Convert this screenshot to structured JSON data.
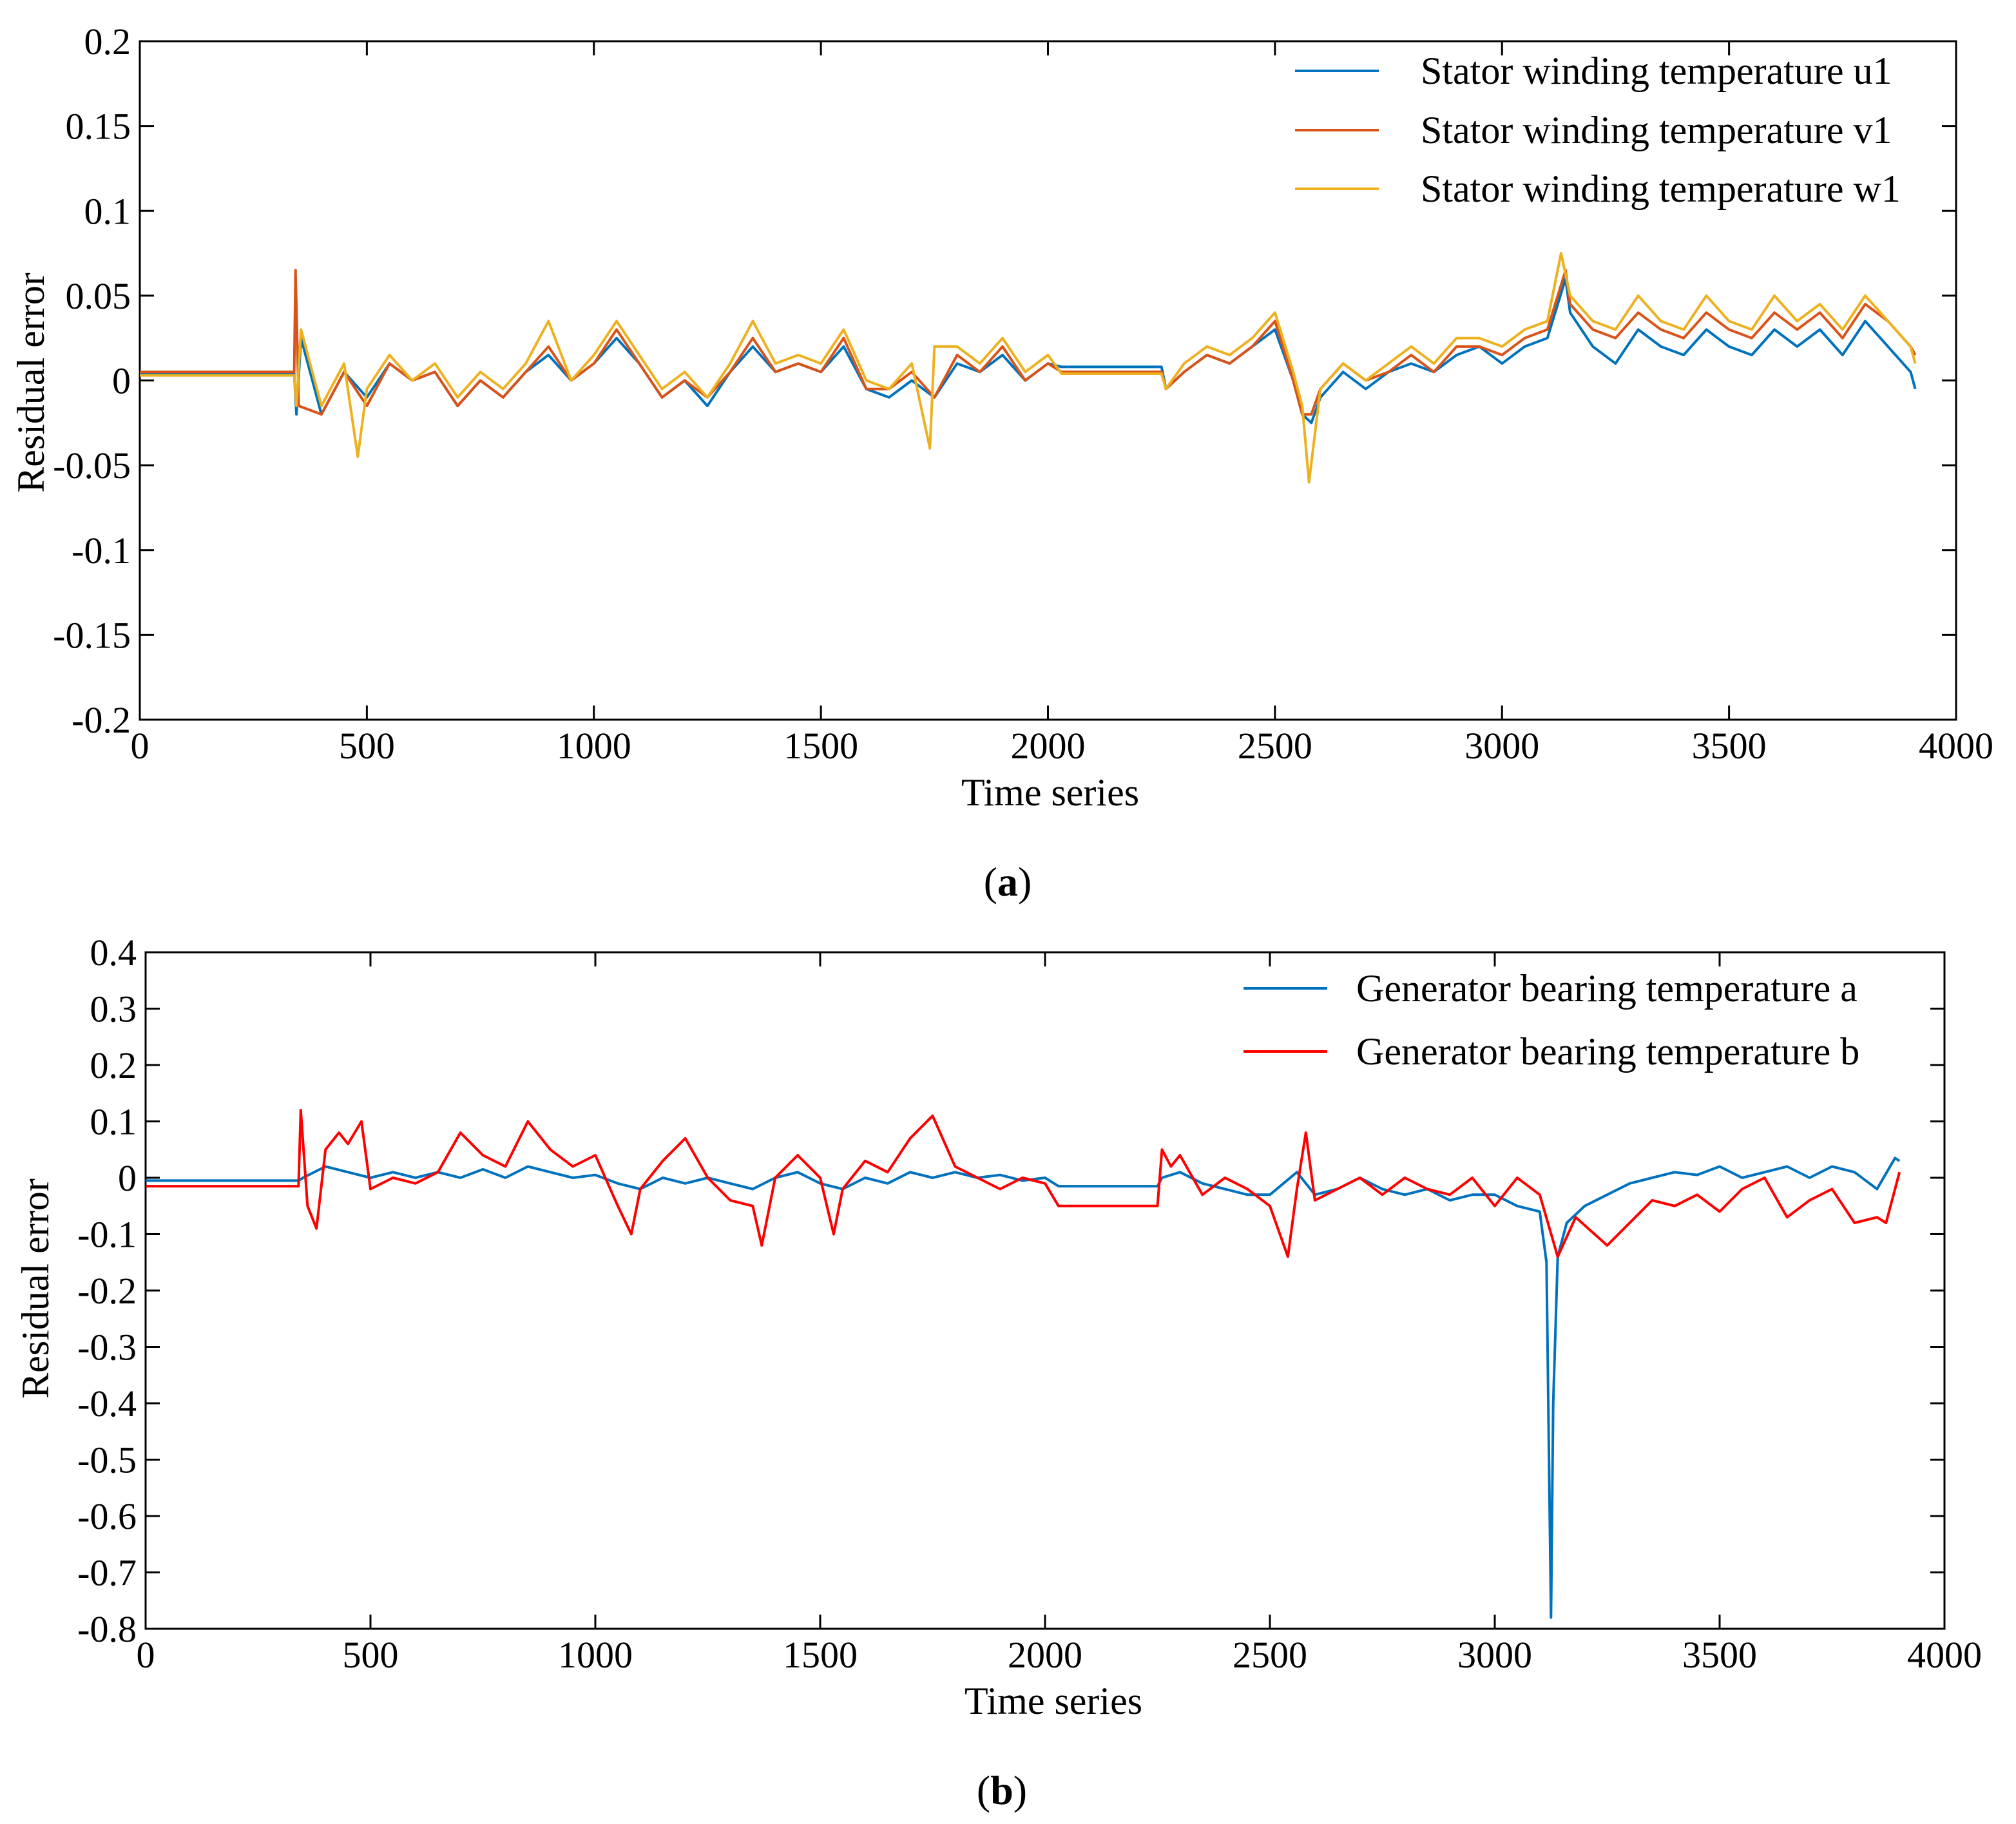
{
  "chart_data": [
    {
      "id": "a",
      "type": "line",
      "caption": "a",
      "xlabel": "Time series",
      "ylabel": "Residual error",
      "xlim": [
        0,
        4000
      ],
      "ylim": [
        -0.2,
        0.2
      ],
      "xticks": [
        0,
        500,
        1000,
        1500,
        2000,
        2500,
        3000,
        3500,
        4000
      ],
      "xtick_labels": [
        "0",
        "500",
        "1000",
        "1500",
        "2000",
        "2500",
        "3000",
        "3500",
        "4000"
      ],
      "yticks": [
        0.2,
        0.15,
        0.1,
        0.05,
        0,
        -0.05,
        -0.1,
        -0.15,
        -0.2
      ],
      "ytick_labels": [
        "0.2",
        "0.15",
        "0.1",
        "0.05",
        "0",
        "-0.05",
        "-0.1",
        "-0.15",
        "-0.2"
      ],
      "legend_position": "top-right",
      "series": [
        {
          "name": "Stator winding temperature u1",
          "color": "#0072BD",
          "x": [
            0,
            340,
            345,
            355,
            400,
            450,
            500,
            550,
            600,
            650,
            700,
            750,
            800,
            850,
            900,
            950,
            1000,
            1050,
            1100,
            1150,
            1200,
            1250,
            1300,
            1350,
            1400,
            1450,
            1500,
            1550,
            1600,
            1650,
            1700,
            1750,
            1800,
            1850,
            1900,
            1950,
            2000,
            2030,
            2100,
            2250,
            2260,
            2300,
            2350,
            2400,
            2450,
            2500,
            2540,
            2560,
            2580,
            2600,
            2650,
            2700,
            2750,
            2800,
            2850,
            2900,
            2950,
            3000,
            3050,
            3100,
            3140,
            3150,
            3200,
            3250,
            3300,
            3350,
            3400,
            3450,
            3500,
            3550,
            3600,
            3650,
            3700,
            3750,
            3800,
            3850,
            3900,
            3910
          ],
          "y": [
            0.004,
            0.004,
            -0.02,
            0.025,
            -0.02,
            0.005,
            -0.01,
            0.01,
            0.0,
            0.005,
            -0.015,
            0.0,
            -0.01,
            0.005,
            0.015,
            0.0,
            0.01,
            0.025,
            0.01,
            -0.01,
            0.0,
            -0.015,
            0.005,
            0.02,
            0.005,
            0.01,
            0.005,
            0.02,
            -0.005,
            -0.01,
            0.0,
            -0.01,
            0.01,
            0.005,
            0.015,
            0.0,
            0.01,
            0.008,
            0.008,
            0.008,
            -0.005,
            0.005,
            0.015,
            0.01,
            0.02,
            0.03,
            0.0,
            -0.02,
            -0.025,
            -0.01,
            0.005,
            -0.005,
            0.005,
            0.01,
            0.005,
            0.015,
            0.02,
            0.01,
            0.02,
            0.025,
            0.06,
            0.04,
            0.02,
            0.01,
            0.03,
            0.02,
            0.015,
            0.03,
            0.02,
            0.015,
            0.03,
            0.02,
            0.03,
            0.015,
            0.035,
            0.02,
            0.005,
            -0.005
          ]
        },
        {
          "name": "Stator winding temperature v1",
          "color": "#D95319",
          "x": [
            0,
            340,
            343,
            350,
            400,
            450,
            500,
            550,
            600,
            650,
            700,
            750,
            800,
            850,
            900,
            950,
            1000,
            1050,
            1100,
            1150,
            1200,
            1250,
            1300,
            1350,
            1400,
            1450,
            1500,
            1550,
            1600,
            1650,
            1700,
            1750,
            1800,
            1850,
            1900,
            1950,
            2000,
            2030,
            2100,
            2250,
            2260,
            2300,
            2350,
            2400,
            2450,
            2500,
            2540,
            2560,
            2580,
            2600,
            2650,
            2700,
            2750,
            2800,
            2850,
            2900,
            2950,
            3000,
            3050,
            3100,
            3140,
            3150,
            3200,
            3250,
            3300,
            3350,
            3400,
            3450,
            3500,
            3550,
            3600,
            3650,
            3700,
            3750,
            3800,
            3850,
            3900,
            3910
          ],
          "y": [
            0.005,
            0.005,
            0.065,
            -0.015,
            -0.02,
            0.005,
            -0.015,
            0.01,
            0.0,
            0.005,
            -0.015,
            0.0,
            -0.01,
            0.005,
            0.02,
            0.0,
            0.01,
            0.03,
            0.01,
            -0.01,
            0.0,
            -0.01,
            0.005,
            0.025,
            0.005,
            0.01,
            0.005,
            0.025,
            -0.005,
            -0.005,
            0.005,
            -0.01,
            0.015,
            0.005,
            0.02,
            0.0,
            0.01,
            0.005,
            0.005,
            0.005,
            -0.005,
            0.005,
            0.015,
            0.01,
            0.02,
            0.035,
            0.0,
            -0.02,
            -0.02,
            -0.005,
            0.01,
            0.0,
            0.005,
            0.015,
            0.005,
            0.02,
            0.02,
            0.015,
            0.025,
            0.03,
            0.065,
            0.045,
            0.03,
            0.025,
            0.04,
            0.03,
            0.025,
            0.04,
            0.03,
            0.025,
            0.04,
            0.03,
            0.04,
            0.025,
            0.045,
            0.035,
            0.02,
            0.015
          ]
        },
        {
          "name": "Stator winding temperature w1",
          "color": "#EDB120",
          "x": [
            0,
            340,
            345,
            355,
            400,
            450,
            480,
            500,
            550,
            600,
            650,
            700,
            750,
            800,
            850,
            900,
            950,
            1000,
            1050,
            1100,
            1150,
            1200,
            1250,
            1300,
            1350,
            1400,
            1450,
            1500,
            1550,
            1600,
            1650,
            1700,
            1740,
            1750,
            1800,
            1850,
            1900,
            1950,
            2000,
            2030,
            2100,
            2250,
            2260,
            2300,
            2350,
            2400,
            2450,
            2500,
            2540,
            2560,
            2575,
            2600,
            2650,
            2700,
            2750,
            2800,
            2850,
            2900,
            2950,
            3000,
            3050,
            3100,
            3130,
            3150,
            3200,
            3250,
            3300,
            3350,
            3400,
            3450,
            3500,
            3550,
            3600,
            3650,
            3700,
            3750,
            3800,
            3850,
            3900,
            3910
          ],
          "y": [
            0.003,
            0.003,
            -0.015,
            0.03,
            -0.015,
            0.01,
            -0.045,
            -0.005,
            0.015,
            0.0,
            0.01,
            -0.01,
            0.005,
            -0.005,
            0.01,
            0.035,
            0.0,
            0.015,
            0.035,
            0.015,
            -0.005,
            0.005,
            -0.01,
            0.01,
            0.035,
            0.01,
            0.015,
            0.01,
            0.03,
            0.0,
            -0.005,
            0.01,
            -0.04,
            0.02,
            0.02,
            0.01,
            0.025,
            0.005,
            0.015,
            0.004,
            0.004,
            0.004,
            -0.005,
            0.01,
            0.02,
            0.015,
            0.025,
            0.04,
            0.005,
            -0.015,
            -0.06,
            -0.005,
            0.01,
            0.0,
            0.01,
            0.02,
            0.01,
            0.025,
            0.025,
            0.02,
            0.03,
            0.035,
            0.075,
            0.05,
            0.035,
            0.03,
            0.05,
            0.035,
            0.03,
            0.05,
            0.035,
            0.03,
            0.05,
            0.035,
            0.045,
            0.03,
            0.05,
            0.035,
            0.02,
            0.01
          ]
        }
      ]
    },
    {
      "id": "b",
      "type": "line",
      "caption": "b",
      "xlabel": "Time series",
      "ylabel": "Residual error",
      "xlim": [
        0,
        4000
      ],
      "ylim": [
        -0.8,
        0.4
      ],
      "xticks": [
        0,
        500,
        1000,
        1500,
        2000,
        2500,
        3000,
        3500,
        4000
      ],
      "xtick_labels": [
        "0",
        "500",
        "1000",
        "1500",
        "2000",
        "2500",
        "3000",
        "3500",
        "4000"
      ],
      "yticks": [
        0.4,
        0.3,
        0.2,
        0.1,
        0,
        -0.1,
        -0.2,
        -0.3,
        -0.4,
        -0.5,
        -0.6,
        -0.7,
        -0.8
      ],
      "ytick_labels": [
        "0.4",
        "0.3",
        "0.2",
        "0.1",
        "0",
        "-0.1",
        "-0.2",
        "-0.3",
        "-0.4",
        "-0.5",
        "-0.6",
        "-0.7",
        "-0.8"
      ],
      "legend_position": "top-right",
      "series": [
        {
          "name": "Generator bearing temperature a",
          "color": "#0072BD",
          "x": [
            0,
            340,
            350,
            400,
            450,
            500,
            550,
            600,
            650,
            700,
            750,
            800,
            850,
            900,
            950,
            1000,
            1050,
            1100,
            1150,
            1200,
            1250,
            1300,
            1350,
            1400,
            1450,
            1500,
            1550,
            1600,
            1650,
            1700,
            1750,
            1800,
            1850,
            1900,
            1950,
            2000,
            2030,
            2100,
            2250,
            2260,
            2300,
            2350,
            2400,
            2450,
            2500,
            2560,
            2600,
            2650,
            2700,
            2750,
            2800,
            2850,
            2900,
            2950,
            3000,
            3050,
            3100,
            3115,
            3125,
            3130,
            3140,
            3160,
            3200,
            3250,
            3300,
            3350,
            3400,
            3450,
            3500,
            3550,
            3600,
            3650,
            3700,
            3750,
            3800,
            3850,
            3890,
            3900
          ],
          "y": [
            -0.005,
            -0.005,
            0.0,
            0.02,
            0.01,
            0.0,
            0.01,
            0.0,
            0.01,
            0.0,
            0.015,
            0.0,
            0.02,
            0.01,
            0.0,
            0.005,
            -0.01,
            -0.02,
            0.0,
            -0.01,
            0.0,
            -0.01,
            -0.02,
            0.0,
            0.01,
            -0.01,
            -0.02,
            0.0,
            -0.01,
            0.01,
            0.0,
            0.01,
            0.0,
            0.005,
            -0.005,
            0.0,
            -0.015,
            -0.015,
            -0.015,
            0.0,
            0.01,
            -0.01,
            -0.02,
            -0.03,
            -0.03,
            0.01,
            -0.03,
            -0.02,
            0.0,
            -0.02,
            -0.03,
            -0.02,
            -0.04,
            -0.03,
            -0.03,
            -0.05,
            -0.06,
            -0.15,
            -0.78,
            -0.4,
            -0.14,
            -0.08,
            -0.05,
            -0.03,
            -0.01,
            0.0,
            0.01,
            0.005,
            0.02,
            0.0,
            0.01,
            0.02,
            0.0,
            0.02,
            0.01,
            -0.02,
            0.035,
            0.03
          ]
        },
        {
          "name": "Generator bearing temperature b",
          "color": "#FF0000",
          "x": [
            0,
            340,
            345,
            360,
            380,
            400,
            430,
            450,
            480,
            500,
            550,
            600,
            650,
            700,
            750,
            800,
            850,
            900,
            950,
            1000,
            1050,
            1080,
            1100,
            1150,
            1200,
            1250,
            1300,
            1350,
            1370,
            1400,
            1450,
            1500,
            1530,
            1550,
            1600,
            1650,
            1700,
            1750,
            1800,
            1850,
            1900,
            1950,
            2000,
            2030,
            2100,
            2250,
            2260,
            2280,
            2300,
            2350,
            2400,
            2450,
            2500,
            2540,
            2560,
            2580,
            2600,
            2650,
            2700,
            2750,
            2800,
            2850,
            2900,
            2950,
            3000,
            3050,
            3100,
            3140,
            3180,
            3250,
            3300,
            3350,
            3400,
            3450,
            3500,
            3550,
            3600,
            3650,
            3700,
            3750,
            3800,
            3850,
            3870,
            3900
          ],
          "y": [
            -0.015,
            -0.015,
            0.12,
            -0.05,
            -0.09,
            0.05,
            0.08,
            0.06,
            0.1,
            -0.02,
            0.0,
            -0.01,
            0.01,
            0.08,
            0.04,
            0.02,
            0.1,
            0.05,
            0.02,
            0.04,
            -0.05,
            -0.1,
            -0.02,
            0.03,
            0.07,
            0.0,
            -0.04,
            -0.05,
            -0.12,
            0.0,
            0.04,
            0.0,
            -0.1,
            -0.02,
            0.03,
            0.01,
            0.07,
            0.11,
            0.02,
            0.0,
            -0.02,
            0.0,
            -0.01,
            -0.05,
            -0.05,
            -0.05,
            0.05,
            0.02,
            0.04,
            -0.03,
            0.0,
            -0.02,
            -0.05,
            -0.14,
            -0.02,
            0.08,
            -0.04,
            -0.02,
            0.0,
            -0.03,
            0.0,
            -0.02,
            -0.03,
            0.0,
            -0.05,
            0.0,
            -0.03,
            -0.14,
            -0.07,
            -0.12,
            -0.08,
            -0.04,
            -0.05,
            -0.03,
            -0.06,
            -0.02,
            0.0,
            -0.07,
            -0.04,
            -0.02,
            -0.08,
            -0.07,
            -0.08,
            0.01
          ]
        }
      ]
    }
  ]
}
